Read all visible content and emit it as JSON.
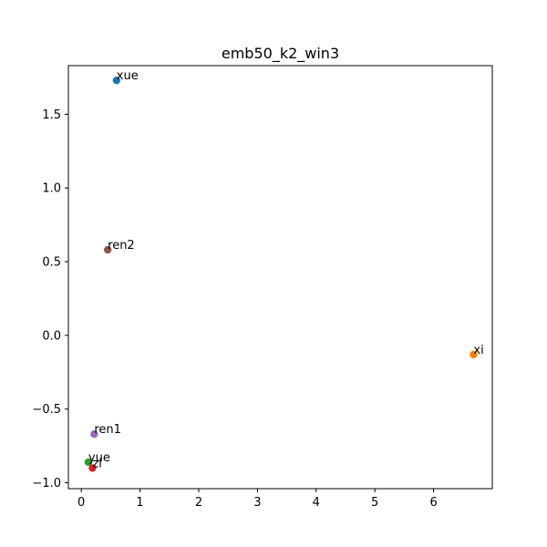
{
  "chart_data": {
    "type": "scatter",
    "title": "emb50_k2_win3",
    "xlabel": "",
    "ylabel": "",
    "xlim": [
      -0.22,
      7.0
    ],
    "ylim": [
      -1.04,
      1.83
    ],
    "xticks": [
      0,
      1,
      2,
      3,
      4,
      5,
      6
    ],
    "yticks": [
      -1.0,
      -0.5,
      0.0,
      0.5,
      1.0,
      1.5
    ],
    "ytick_labels": [
      "−1.0",
      "−0.5",
      "0.0",
      "0.5",
      "1.0",
      "1.5"
    ],
    "grid": false,
    "points": [
      {
        "label": "xue",
        "x": 0.6,
        "y": 1.73,
        "color": "#1f77b4"
      },
      {
        "label": "xi",
        "x": 6.68,
        "y": -0.13,
        "color": "#ff7f0e"
      },
      {
        "label": "yue",
        "x": 0.12,
        "y": -0.86,
        "color": "#2ca02c"
      },
      {
        "label": "zi",
        "x": 0.19,
        "y": -0.9,
        "color": "#d62728"
      },
      {
        "label": "ren1",
        "x": 0.22,
        "y": -0.67,
        "color": "#9467bd"
      },
      {
        "label": "ren2",
        "x": 0.45,
        "y": 0.58,
        "color": "#8c564b"
      }
    ]
  }
}
